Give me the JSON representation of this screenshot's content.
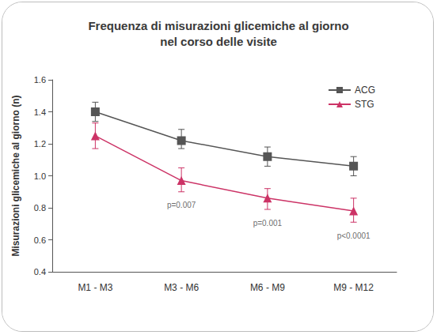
{
  "chart_data": {
    "type": "line",
    "title": "Frequenza di misurazioni glicemiche al giorno\nnel corso delle visite",
    "y_label": "Misurazioni glicemiche al giorno (n)",
    "categories": [
      "M1 - M3",
      "M3 - M6",
      "M6 - M9",
      "M9 - M12"
    ],
    "series": [
      {
        "name": "ACG",
        "color": "#555555",
        "marker": "square",
        "line_style": "solid",
        "values": [
          1.4,
          1.22,
          1.12,
          1.06
        ],
        "errors": [
          [
            1.34,
            1.46
          ],
          [
            1.17,
            1.29
          ],
          [
            1.06,
            1.18
          ],
          [
            1.0,
            1.12
          ]
        ]
      },
      {
        "name": "STG",
        "color": "#cc3366",
        "marker": "triangle",
        "line_style": "solid",
        "values": [
          1.25,
          0.97,
          0.86,
          0.78
        ],
        "errors": [
          [
            1.17,
            1.33
          ],
          [
            0.9,
            1.05
          ],
          [
            0.79,
            0.92
          ],
          [
            0.71,
            0.86
          ]
        ]
      }
    ],
    "annotations": [
      {
        "category": "M3 - M6",
        "text": "p=0.007"
      },
      {
        "category": "M6 - M9",
        "text": "p=0.001"
      },
      {
        "category": "M9 - M12",
        "text": "p<0.0001"
      }
    ],
    "ylim": [
      0.4,
      1.6
    ],
    "yticks": [
      0.4,
      0.6,
      0.8,
      {
        "value": 1.0,
        "label": "1.0"
      },
      1.2,
      1.4,
      1.6
    ],
    "grid": false,
    "legend": "top-right"
  }
}
